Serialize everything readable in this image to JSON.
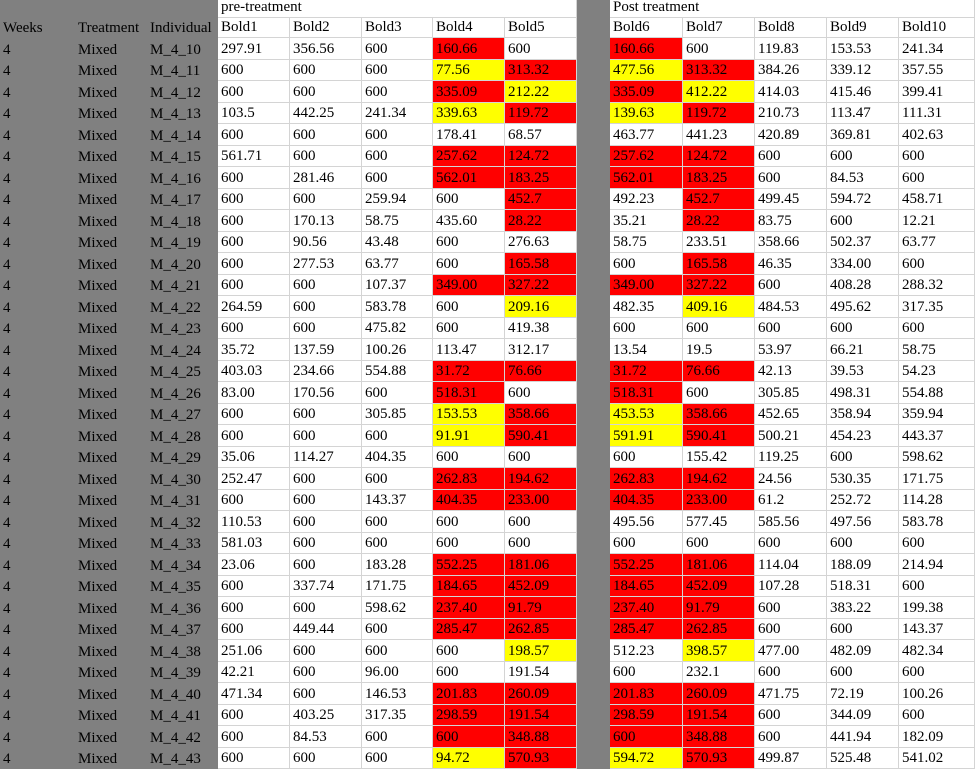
{
  "sheet": {
    "group_headers": {
      "pre": "pre-treatment",
      "post": "Post treatment"
    },
    "columns": [
      "Weeks",
      "Treatment",
      "Individual",
      "Bold1",
      "Bold2",
      "Bold3",
      "Bold4",
      "Bold5",
      "Bold6",
      "Bold7",
      "Bold8",
      "Bold9",
      "Bold10"
    ],
    "colors": {
      "header_fill": "#808080",
      "red": "#ff0000",
      "yellow": "#ffff00",
      "gridline": "#d4d4d4"
    },
    "fill_legend": {
      "r": "red",
      "y": "yellow",
      "-": "none"
    },
    "rows": [
      {
        "w": "4",
        "t": "Mixed",
        "id": "M_4_10",
        "v": [
          "297.91",
          "356.56",
          "600",
          "160.66",
          "600",
          "160.66",
          "600",
          "119.83",
          "153.53",
          "241.34"
        ],
        "fill": "---r-r----"
      },
      {
        "w": "4",
        "t": "Mixed",
        "id": "M_4_11",
        "v": [
          "600",
          "600",
          "600",
          "77.56",
          "313.32",
          "477.56",
          "313.32",
          "384.26",
          "339.12",
          "357.55"
        ],
        "fill": "---yryr---"
      },
      {
        "w": "4",
        "t": "Mixed",
        "id": "M_4_12",
        "v": [
          "600",
          "600",
          "600",
          "335.09",
          "212.22",
          "335.09",
          "412.22",
          "414.03",
          "415.46",
          "399.41"
        ],
        "fill": "---ryry---"
      },
      {
        "w": "4",
        "t": "Mixed",
        "id": "M_4_13",
        "v": [
          "103.5",
          "442.25",
          "241.34",
          "339.63",
          "119.72",
          "139.63",
          "119.72",
          "210.73",
          "113.47",
          "111.31"
        ],
        "fill": "---yryr---"
      },
      {
        "w": "4",
        "t": "Mixed",
        "id": "M_4_14",
        "v": [
          "600",
          "600",
          "600",
          "178.41",
          "68.57",
          "463.77",
          "441.23",
          "420.89",
          "369.81",
          "402.63"
        ],
        "fill": "----------"
      },
      {
        "w": "4",
        "t": "Mixed",
        "id": "M_4_15",
        "v": [
          "561.71",
          "600",
          "600",
          "257.62",
          "124.72",
          "257.62",
          "124.72",
          "600",
          "600",
          "600"
        ],
        "fill": "---rrrr---"
      },
      {
        "w": "4",
        "t": "Mixed",
        "id": "M_4_16",
        "v": [
          "600",
          "281.46",
          "600",
          "562.01",
          "183.25",
          "562.01",
          "183.25",
          "600",
          "84.53",
          "600"
        ],
        "fill": "---rrrr---"
      },
      {
        "w": "4",
        "t": "Mixed",
        "id": "M_4_17",
        "v": [
          "600",
          "600",
          "259.94",
          "600",
          "452.7",
          "492.23",
          "452.7",
          "499.45",
          "594.72",
          "458.71"
        ],
        "fill": "----r-r---"
      },
      {
        "w": "4",
        "t": "Mixed",
        "id": "M_4_18",
        "v": [
          "600",
          "170.13",
          "58.75",
          "435.60",
          "28.22",
          "35.21",
          "28.22",
          "83.75",
          "600",
          "12.21"
        ],
        "fill": "----r-r---"
      },
      {
        "w": "4",
        "t": "Mixed",
        "id": "M_4_19",
        "v": [
          "600",
          "90.56",
          "43.48",
          "600",
          "276.63",
          "58.75",
          "233.51",
          "358.66",
          "502.37",
          "63.77"
        ],
        "fill": "----------"
      },
      {
        "w": "4",
        "t": "Mixed",
        "id": "M_4_20",
        "v": [
          "600",
          "277.53",
          "63.77",
          "600",
          "165.58",
          "600",
          "165.58",
          "46.35",
          "334.00",
          "600"
        ],
        "fill": "----r-r---"
      },
      {
        "w": "4",
        "t": "Mixed",
        "id": "M_4_21",
        "v": [
          "600",
          "600",
          "107.37",
          "349.00",
          "327.22",
          "349.00",
          "327.22",
          "600",
          "408.28",
          "288.32"
        ],
        "fill": "---rrrr---"
      },
      {
        "w": "4",
        "t": "Mixed",
        "id": "M_4_22",
        "v": [
          "264.59",
          "600",
          "583.78",
          "600",
          "209.16",
          "482.35",
          "409.16",
          "484.53",
          "495.62",
          "317.35"
        ],
        "fill": "----y-y---"
      },
      {
        "w": "4",
        "t": "Mixed",
        "id": "M_4_23",
        "v": [
          "600",
          "600",
          "475.82",
          "600",
          "419.38",
          "600",
          "600",
          "600",
          "600",
          "600"
        ],
        "fill": "----------"
      },
      {
        "w": "4",
        "t": "Mixed",
        "id": "M_4_24",
        "v": [
          "35.72",
          "137.59",
          "100.26",
          "113.47",
          "312.17",
          "13.54",
          "19.5",
          "53.97",
          "66.21",
          "58.75"
        ],
        "fill": "----------"
      },
      {
        "w": "4",
        "t": "Mixed",
        "id": "M_4_25",
        "v": [
          "403.03",
          "234.66",
          "554.88",
          "31.72",
          "76.66",
          "31.72",
          "76.66",
          "42.13",
          "39.53",
          "54.23"
        ],
        "fill": "---rrrr---"
      },
      {
        "w": "4",
        "t": "Mixed",
        "id": "M_4_26",
        "v": [
          "83.00",
          "170.56",
          "600",
          "518.31",
          "600",
          "518.31",
          "600",
          "305.85",
          "498.31",
          "554.88"
        ],
        "fill": "---r-r----"
      },
      {
        "w": "4",
        "t": "Mixed",
        "id": "M_4_27",
        "v": [
          "600",
          "600",
          "305.85",
          "153.53",
          "358.66",
          "453.53",
          "358.66",
          "452.65",
          "358.94",
          "359.94"
        ],
        "fill": "---yryr---"
      },
      {
        "w": "4",
        "t": "Mixed",
        "id": "M_4_28",
        "v": [
          "600",
          "600",
          "600",
          "91.91",
          "590.41",
          "591.91",
          "590.41",
          "500.21",
          "454.23",
          "443.37"
        ],
        "fill": "---yryr---"
      },
      {
        "w": "4",
        "t": "Mixed",
        "id": "M_4_29",
        "v": [
          "35.06",
          "114.27",
          "404.35",
          "600",
          "600",
          "600",
          "155.42",
          "119.25",
          "600",
          "598.62"
        ],
        "fill": "----------"
      },
      {
        "w": "4",
        "t": "Mixed",
        "id": "M_4_30",
        "v": [
          "252.47",
          "600",
          "600",
          "262.83",
          "194.62",
          "262.83",
          "194.62",
          "24.56",
          "530.35",
          "171.75"
        ],
        "fill": "---rrrr---"
      },
      {
        "w": "4",
        "t": "Mixed",
        "id": "M_4_31",
        "v": [
          "600",
          "600",
          "143.37",
          "404.35",
          "233.00",
          "404.35",
          "233.00",
          "61.2",
          "252.72",
          "114.28"
        ],
        "fill": "---rrrr---"
      },
      {
        "w": "4",
        "t": "Mixed",
        "id": "M_4_32",
        "v": [
          "110.53",
          "600",
          "600",
          "600",
          "600",
          "495.56",
          "577.45",
          "585.56",
          "497.56",
          "583.78"
        ],
        "fill": "----------"
      },
      {
        "w": "4",
        "t": "Mixed",
        "id": "M_4_33",
        "v": [
          "581.03",
          "600",
          "600",
          "600",
          "600",
          "600",
          "600",
          "600",
          "600",
          "600"
        ],
        "fill": "----------"
      },
      {
        "w": "4",
        "t": "Mixed",
        "id": "M_4_34",
        "v": [
          "23.06",
          "600",
          "183.28",
          "552.25",
          "181.06",
          "552.25",
          "181.06",
          "114.04",
          "188.09",
          "214.94"
        ],
        "fill": "---rrrr---"
      },
      {
        "w": "4",
        "t": "Mixed",
        "id": "M_4_35",
        "v": [
          "600",
          "337.74",
          "171.75",
          "184.65",
          "452.09",
          "184.65",
          "452.09",
          "107.28",
          "518.31",
          "600"
        ],
        "fill": "---rrrr---"
      },
      {
        "w": "4",
        "t": "Mixed",
        "id": "M_4_36",
        "v": [
          "600",
          "600",
          "598.62",
          "237.40",
          "91.79",
          "237.40",
          "91.79",
          "600",
          "383.22",
          "199.38"
        ],
        "fill": "---rrrr---"
      },
      {
        "w": "4",
        "t": "Mixed",
        "id": "M_4_37",
        "v": [
          "600",
          "449.44",
          "600",
          "285.47",
          "262.85",
          "285.47",
          "262.85",
          "600",
          "600",
          "143.37"
        ],
        "fill": "---rrrr---"
      },
      {
        "w": "4",
        "t": "Mixed",
        "id": "M_4_38",
        "v": [
          "251.06",
          "600",
          "600",
          "600",
          "198.57",
          "512.23",
          "398.57",
          "477.00",
          "482.09",
          "482.34"
        ],
        "fill": "----y-y---"
      },
      {
        "w": "4",
        "t": "Mixed",
        "id": "M_4_39",
        "v": [
          "42.21",
          "600",
          "96.00",
          "600",
          "191.54",
          "600",
          "232.1",
          "600",
          "600",
          "600"
        ],
        "fill": "----------"
      },
      {
        "w": "4",
        "t": "Mixed",
        "id": "M_4_40",
        "v": [
          "471.34",
          "600",
          "146.53",
          "201.83",
          "260.09",
          "201.83",
          "260.09",
          "471.75",
          "72.19",
          "100.26"
        ],
        "fill": "---rrrr---"
      },
      {
        "w": "4",
        "t": "Mixed",
        "id": "M_4_41",
        "v": [
          "600",
          "403.25",
          "317.35",
          "298.59",
          "191.54",
          "298.59",
          "191.54",
          "600",
          "344.09",
          "600"
        ],
        "fill": "---rrrr---"
      },
      {
        "w": "4",
        "t": "Mixed",
        "id": "M_4_42",
        "v": [
          "600",
          "84.53",
          "600",
          "600",
          "348.88",
          "600",
          "348.88",
          "600",
          "441.94",
          "182.09"
        ],
        "fill": "---rrrr---"
      },
      {
        "w": "4",
        "t": "Mixed",
        "id": "M_4_43",
        "v": [
          "600",
          "600",
          "600",
          "94.72",
          "570.93",
          "594.72",
          "570.93",
          "499.87",
          "525.48",
          "541.02"
        ],
        "fill": "---yryr---"
      }
    ]
  }
}
